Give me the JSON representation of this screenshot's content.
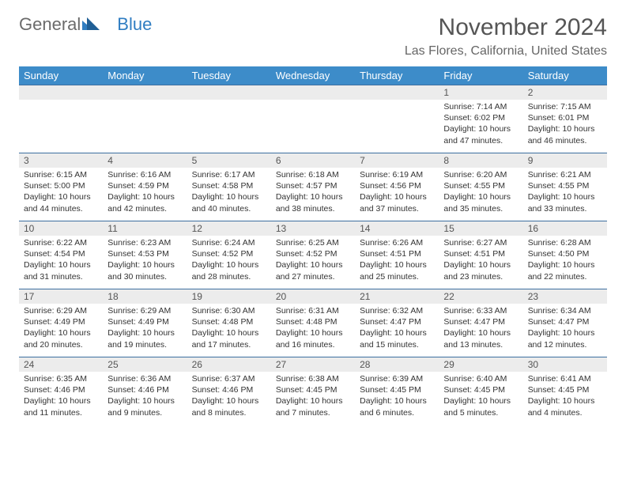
{
  "logo": {
    "text1": "General",
    "text2": "Blue"
  },
  "title": "November 2024",
  "location": "Las Flores, California, United States",
  "colors": {
    "header_bg": "#3d8cc9",
    "header_text": "#ffffff",
    "daynum_bg": "#ececec",
    "row_border": "#3d6fa0",
    "logo_gray": "#6b6b6b",
    "logo_blue": "#2f7dc2",
    "title_color": "#555555",
    "body_text": "#333333",
    "page_bg": "#ffffff"
  },
  "typography": {
    "month_title_fontsize": 30,
    "location_fontsize": 16,
    "dayheader_fontsize": 13,
    "daynum_fontsize": 12,
    "body_fontsize": 10.5
  },
  "day_headers": [
    "Sunday",
    "Monday",
    "Tuesday",
    "Wednesday",
    "Thursday",
    "Friday",
    "Saturday"
  ],
  "weeks": [
    [
      {
        "n": "",
        "sunrise": "",
        "sunset": "",
        "daylight": ""
      },
      {
        "n": "",
        "sunrise": "",
        "sunset": "",
        "daylight": ""
      },
      {
        "n": "",
        "sunrise": "",
        "sunset": "",
        "daylight": ""
      },
      {
        "n": "",
        "sunrise": "",
        "sunset": "",
        "daylight": ""
      },
      {
        "n": "",
        "sunrise": "",
        "sunset": "",
        "daylight": ""
      },
      {
        "n": "1",
        "sunrise": "Sunrise: 7:14 AM",
        "sunset": "Sunset: 6:02 PM",
        "daylight": "Daylight: 10 hours and 47 minutes."
      },
      {
        "n": "2",
        "sunrise": "Sunrise: 7:15 AM",
        "sunset": "Sunset: 6:01 PM",
        "daylight": "Daylight: 10 hours and 46 minutes."
      }
    ],
    [
      {
        "n": "3",
        "sunrise": "Sunrise: 6:15 AM",
        "sunset": "Sunset: 5:00 PM",
        "daylight": "Daylight: 10 hours and 44 minutes."
      },
      {
        "n": "4",
        "sunrise": "Sunrise: 6:16 AM",
        "sunset": "Sunset: 4:59 PM",
        "daylight": "Daylight: 10 hours and 42 minutes."
      },
      {
        "n": "5",
        "sunrise": "Sunrise: 6:17 AM",
        "sunset": "Sunset: 4:58 PM",
        "daylight": "Daylight: 10 hours and 40 minutes."
      },
      {
        "n": "6",
        "sunrise": "Sunrise: 6:18 AM",
        "sunset": "Sunset: 4:57 PM",
        "daylight": "Daylight: 10 hours and 38 minutes."
      },
      {
        "n": "7",
        "sunrise": "Sunrise: 6:19 AM",
        "sunset": "Sunset: 4:56 PM",
        "daylight": "Daylight: 10 hours and 37 minutes."
      },
      {
        "n": "8",
        "sunrise": "Sunrise: 6:20 AM",
        "sunset": "Sunset: 4:55 PM",
        "daylight": "Daylight: 10 hours and 35 minutes."
      },
      {
        "n": "9",
        "sunrise": "Sunrise: 6:21 AM",
        "sunset": "Sunset: 4:55 PM",
        "daylight": "Daylight: 10 hours and 33 minutes."
      }
    ],
    [
      {
        "n": "10",
        "sunrise": "Sunrise: 6:22 AM",
        "sunset": "Sunset: 4:54 PM",
        "daylight": "Daylight: 10 hours and 31 minutes."
      },
      {
        "n": "11",
        "sunrise": "Sunrise: 6:23 AM",
        "sunset": "Sunset: 4:53 PM",
        "daylight": "Daylight: 10 hours and 30 minutes."
      },
      {
        "n": "12",
        "sunrise": "Sunrise: 6:24 AM",
        "sunset": "Sunset: 4:52 PM",
        "daylight": "Daylight: 10 hours and 28 minutes."
      },
      {
        "n": "13",
        "sunrise": "Sunrise: 6:25 AM",
        "sunset": "Sunset: 4:52 PM",
        "daylight": "Daylight: 10 hours and 27 minutes."
      },
      {
        "n": "14",
        "sunrise": "Sunrise: 6:26 AM",
        "sunset": "Sunset: 4:51 PM",
        "daylight": "Daylight: 10 hours and 25 minutes."
      },
      {
        "n": "15",
        "sunrise": "Sunrise: 6:27 AM",
        "sunset": "Sunset: 4:51 PM",
        "daylight": "Daylight: 10 hours and 23 minutes."
      },
      {
        "n": "16",
        "sunrise": "Sunrise: 6:28 AM",
        "sunset": "Sunset: 4:50 PM",
        "daylight": "Daylight: 10 hours and 22 minutes."
      }
    ],
    [
      {
        "n": "17",
        "sunrise": "Sunrise: 6:29 AM",
        "sunset": "Sunset: 4:49 PM",
        "daylight": "Daylight: 10 hours and 20 minutes."
      },
      {
        "n": "18",
        "sunrise": "Sunrise: 6:29 AM",
        "sunset": "Sunset: 4:49 PM",
        "daylight": "Daylight: 10 hours and 19 minutes."
      },
      {
        "n": "19",
        "sunrise": "Sunrise: 6:30 AM",
        "sunset": "Sunset: 4:48 PM",
        "daylight": "Daylight: 10 hours and 17 minutes."
      },
      {
        "n": "20",
        "sunrise": "Sunrise: 6:31 AM",
        "sunset": "Sunset: 4:48 PM",
        "daylight": "Daylight: 10 hours and 16 minutes."
      },
      {
        "n": "21",
        "sunrise": "Sunrise: 6:32 AM",
        "sunset": "Sunset: 4:47 PM",
        "daylight": "Daylight: 10 hours and 15 minutes."
      },
      {
        "n": "22",
        "sunrise": "Sunrise: 6:33 AM",
        "sunset": "Sunset: 4:47 PM",
        "daylight": "Daylight: 10 hours and 13 minutes."
      },
      {
        "n": "23",
        "sunrise": "Sunrise: 6:34 AM",
        "sunset": "Sunset: 4:47 PM",
        "daylight": "Daylight: 10 hours and 12 minutes."
      }
    ],
    [
      {
        "n": "24",
        "sunrise": "Sunrise: 6:35 AM",
        "sunset": "Sunset: 4:46 PM",
        "daylight": "Daylight: 10 hours and 11 minutes."
      },
      {
        "n": "25",
        "sunrise": "Sunrise: 6:36 AM",
        "sunset": "Sunset: 4:46 PM",
        "daylight": "Daylight: 10 hours and 9 minutes."
      },
      {
        "n": "26",
        "sunrise": "Sunrise: 6:37 AM",
        "sunset": "Sunset: 4:46 PM",
        "daylight": "Daylight: 10 hours and 8 minutes."
      },
      {
        "n": "27",
        "sunrise": "Sunrise: 6:38 AM",
        "sunset": "Sunset: 4:45 PM",
        "daylight": "Daylight: 10 hours and 7 minutes."
      },
      {
        "n": "28",
        "sunrise": "Sunrise: 6:39 AM",
        "sunset": "Sunset: 4:45 PM",
        "daylight": "Daylight: 10 hours and 6 minutes."
      },
      {
        "n": "29",
        "sunrise": "Sunrise: 6:40 AM",
        "sunset": "Sunset: 4:45 PM",
        "daylight": "Daylight: 10 hours and 5 minutes."
      },
      {
        "n": "30",
        "sunrise": "Sunrise: 6:41 AM",
        "sunset": "Sunset: 4:45 PM",
        "daylight": "Daylight: 10 hours and 4 minutes."
      }
    ]
  ]
}
